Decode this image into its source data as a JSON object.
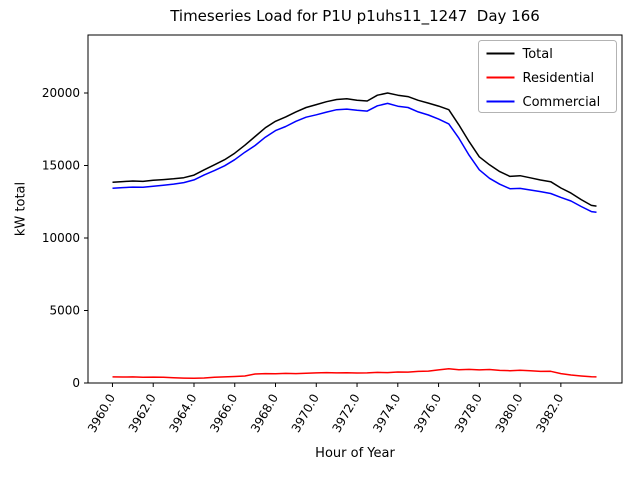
{
  "figure": {
    "title": "Timeseries Load for P1U p1uhs11_1247  Day 166",
    "xlabel": "Hour of Year",
    "ylabel": "kW total"
  },
  "chart_data": {
    "type": "line",
    "title": "Timeseries Load for P1U p1uhs11_1247  Day 166",
    "xlabel": "Hour of Year",
    "ylabel": "kW total",
    "xlim": [
      3958.8,
      3985.0
    ],
    "ylim": [
      0,
      24000
    ],
    "xticks": [
      3960,
      3962,
      3964,
      3966,
      3968,
      3970,
      3972,
      3974,
      3976,
      3978,
      3980,
      3982
    ],
    "yticks": [
      0,
      5000,
      10000,
      15000,
      20000
    ],
    "grid": false,
    "legend_position": "upper right",
    "legend_border_color": "#b3b3b3",
    "axis_color": "#000000",
    "x": [
      3960.0,
      3960.5,
      3961.0,
      3961.5,
      3962.0,
      3962.5,
      3963.0,
      3963.5,
      3964.0,
      3964.5,
      3965.0,
      3965.5,
      3966.0,
      3966.5,
      3967.0,
      3967.5,
      3968.0,
      3968.5,
      3969.0,
      3969.5,
      3970.0,
      3970.5,
      3971.0,
      3971.5,
      3972.0,
      3972.5,
      3973.0,
      3973.5,
      3974.0,
      3974.5,
      3975.0,
      3975.5,
      3976.0,
      3976.5,
      3977.0,
      3977.5,
      3978.0,
      3978.5,
      3979.0,
      3979.5,
      3980.0,
      3980.5,
      3981.0,
      3981.5,
      3982.0,
      3982.5,
      3983.0,
      3983.5,
      3983.75
    ],
    "series": [
      {
        "name": "Total",
        "color": "#000000",
        "values": [
          13850,
          13890,
          13930,
          13900,
          13980,
          14030,
          14080,
          14160,
          14340,
          14700,
          15050,
          15400,
          15850,
          16400,
          17000,
          17600,
          18050,
          18350,
          18700,
          19000,
          19200,
          19400,
          19550,
          19600,
          19500,
          19450,
          19850,
          20000,
          19850,
          19750,
          19500,
          19300,
          19100,
          18850,
          17800,
          16650,
          15600,
          15050,
          14580,
          14250,
          14300,
          14150,
          14000,
          13880,
          13450,
          13100,
          12650,
          12250,
          12200
        ]
      },
      {
        "name": "Residential",
        "color": "#ff0000",
        "values": [
          420,
          415,
          420,
          400,
          410,
          390,
          360,
          340,
          330,
          345,
          400,
          420,
          450,
          480,
          620,
          650,
          640,
          660,
          650,
          670,
          700,
          720,
          700,
          710,
          690,
          700,
          730,
          720,
          760,
          750,
          800,
          820,
          900,
          980,
          920,
          940,
          900,
          930,
          870,
          850,
          880,
          840,
          800,
          810,
          650,
          550,
          480,
          430,
          420
        ]
      },
      {
        "name": "Commercial",
        "color": "#0000ff",
        "values": [
          13430,
          13475,
          13510,
          13500,
          13570,
          13640,
          13720,
          13820,
          14010,
          14355,
          14650,
          14980,
          15400,
          15920,
          16380,
          16950,
          17410,
          17690,
          18050,
          18330,
          18500,
          18680,
          18850,
          18890,
          18810,
          18750,
          19120,
          19280,
          19090,
          19000,
          18700,
          18480,
          18200,
          17870,
          16880,
          15710,
          14700,
          14120,
          13710,
          13400,
          13420,
          13310,
          13200,
          13070,
          12800,
          12550,
          12170,
          11820,
          11780
        ]
      }
    ]
  }
}
